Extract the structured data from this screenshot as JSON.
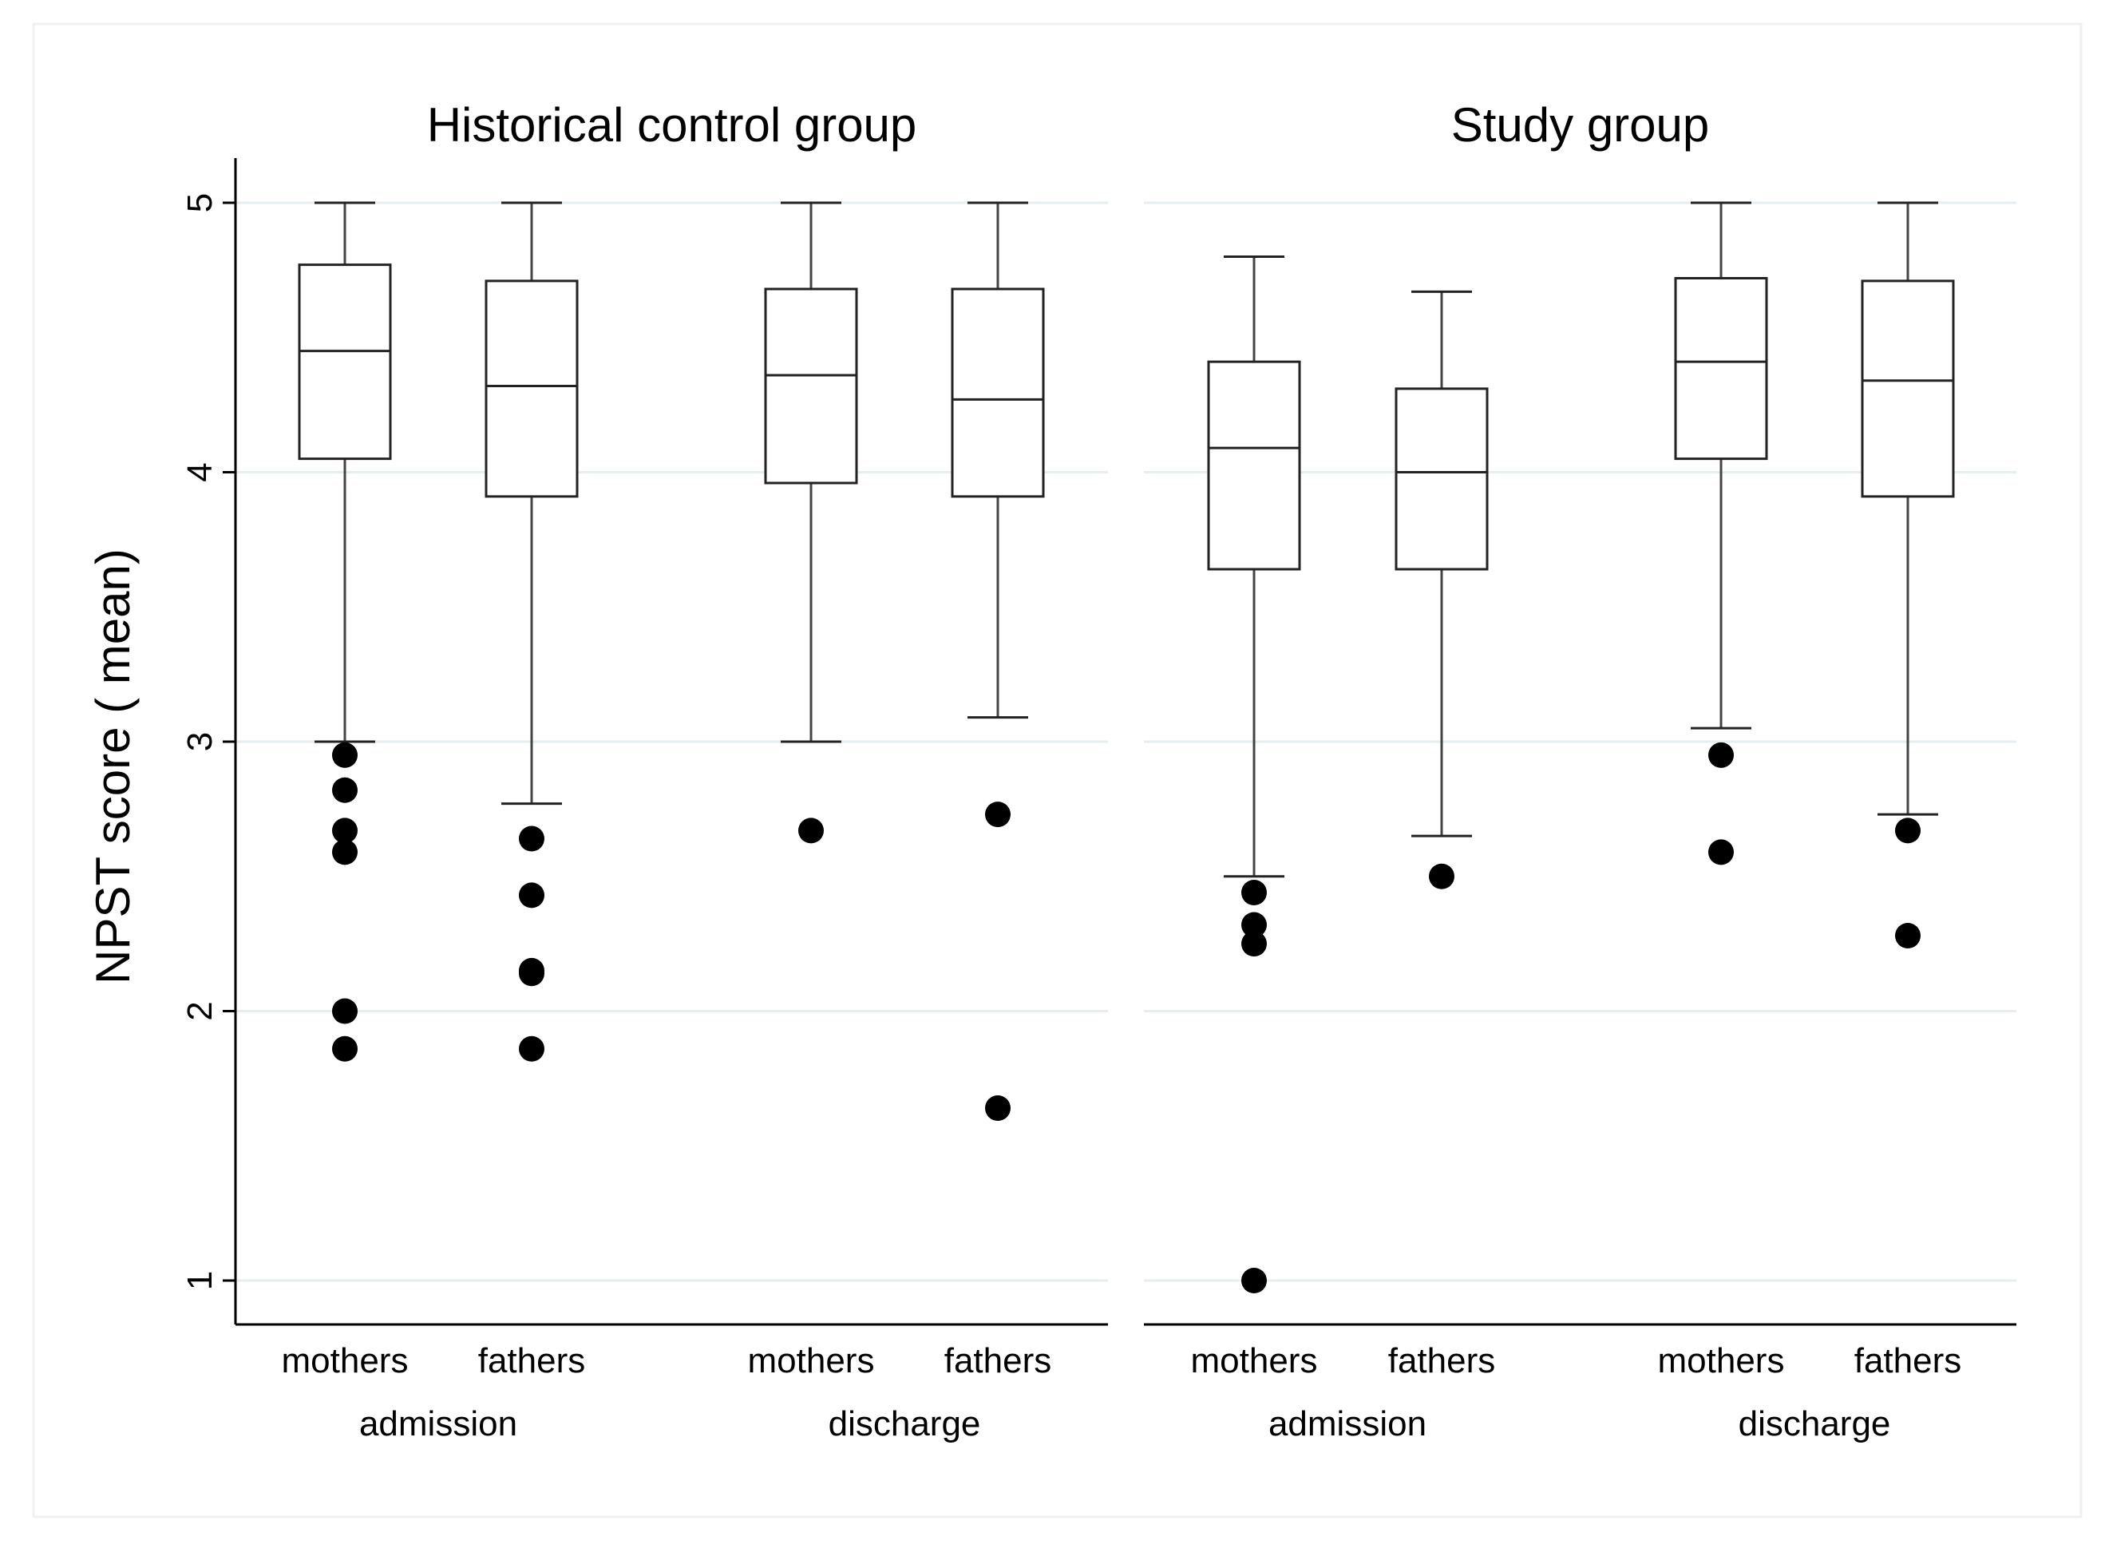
{
  "chart_data": {
    "type": "box",
    "ylabel": "NPST score ( mean)",
    "ylim": [
      1,
      5
    ],
    "yticks": [
      "1",
      "2",
      "3",
      "4",
      "5"
    ],
    "grid": true,
    "panels": [
      {
        "title": "Historical control group",
        "groups": [
          {
            "label": "admission",
            "boxes": [
              {
                "label": "mothers",
                "whisker_low": 3.0,
                "q1": 4.05,
                "median": 4.45,
                "q3": 4.77,
                "whisker_high": 5.0,
                "outliers": [
                  2.95,
                  2.82,
                  2.67,
                  2.59,
                  2.0,
                  1.86
                ]
              },
              {
                "label": "fathers",
                "whisker_low": 2.77,
                "q1": 3.91,
                "median": 4.32,
                "q3": 4.71,
                "whisker_high": 5.0,
                "outliers": [
                  2.64,
                  2.43,
                  2.15,
                  2.14,
                  1.86
                ]
              }
            ]
          },
          {
            "label": "discharge",
            "boxes": [
              {
                "label": "mothers",
                "whisker_low": 3.0,
                "q1": 3.96,
                "median": 4.36,
                "q3": 4.68,
                "whisker_high": 5.0,
                "outliers": [
                  2.67
                ]
              },
              {
                "label": "fathers",
                "whisker_low": 3.09,
                "q1": 3.91,
                "median": 4.27,
                "q3": 4.68,
                "whisker_high": 5.0,
                "outliers": [
                  2.73,
                  1.64
                ]
              }
            ]
          }
        ]
      },
      {
        "title": "Study group",
        "groups": [
          {
            "label": "admission",
            "boxes": [
              {
                "label": "mothers",
                "whisker_low": 2.5,
                "q1": 3.64,
                "median": 4.09,
                "q3": 4.41,
                "whisker_high": 4.8,
                "outliers": [
                  2.44,
                  2.32,
                  2.25,
                  1.0
                ]
              },
              {
                "label": "fathers",
                "whisker_low": 2.65,
                "q1": 3.64,
                "median": 4.0,
                "q3": 4.31,
                "whisker_high": 4.67,
                "outliers": [
                  2.5
                ]
              }
            ]
          },
          {
            "label": "discharge",
            "boxes": [
              {
                "label": "mothers",
                "whisker_low": 3.05,
                "q1": 4.05,
                "median": 4.41,
                "q3": 4.72,
                "whisker_high": 5.0,
                "outliers": [
                  2.95,
                  2.59
                ]
              },
              {
                "label": "fathers",
                "whisker_low": 2.73,
                "q1": 3.91,
                "median": 4.34,
                "q3": 4.71,
                "whisker_high": 5.0,
                "outliers": [
                  2.67,
                  2.28
                ]
              }
            ]
          }
        ]
      }
    ]
  }
}
